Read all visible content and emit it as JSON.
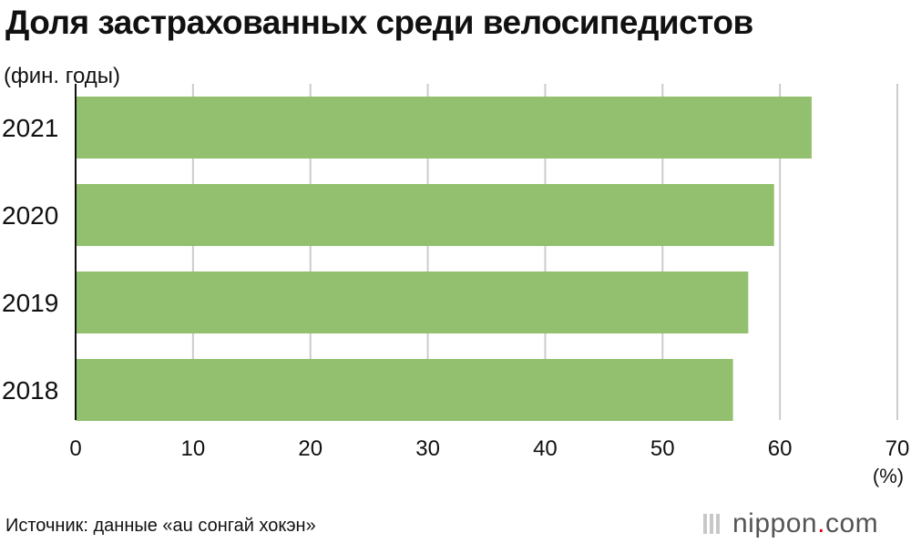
{
  "title": "Доля застрахованных среди велосипедистов",
  "subtitle": "(фин. годы)",
  "source": "Источник: данные «au сонгай хокэн»",
  "logo": {
    "name": "nippon",
    "dot": ".",
    "tld": "com"
  },
  "colors": {
    "bar": "#93c06f",
    "grid": "#cccccc",
    "axis": "#111111"
  },
  "chart_data": {
    "type": "bar",
    "orientation": "horizontal",
    "categories": [
      "2021",
      "2020",
      "2019",
      "2018"
    ],
    "values": [
      62.7,
      59.5,
      57.3,
      56.0
    ],
    "unit_label": "(%)",
    "xlim": [
      0,
      70
    ],
    "xticks": [
      0,
      10,
      20,
      30,
      40,
      50,
      60,
      70
    ],
    "grid": true
  }
}
